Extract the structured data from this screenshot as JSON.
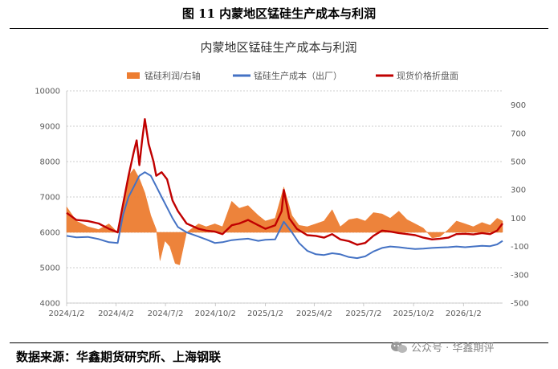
{
  "figure_title": "图 11  内蒙地区锰硅生产成本与利润",
  "source_text": "数据来源：华鑫期货研究所、上海钢联",
  "watermark_text": "公众号 · 华鑫期评",
  "colors": {
    "profit": "#ed7d31",
    "cost": "#4472c4",
    "price": "#c00000"
  },
  "chart_data": {
    "type": "line",
    "title": "内蒙地区锰硅生产成本与利润",
    "x_ticks": [
      "2024/1/2",
      "2024/4/2",
      "2024/7/2",
      "2024/10/2",
      "2025/1/2",
      "2025/4/2",
      "2025/7/2",
      "2025/10/2",
      "2026/1/2"
    ],
    "y_left": {
      "min": 4000,
      "max": 10000,
      "ticks": [
        4000,
        5000,
        6000,
        7000,
        8000,
        9000,
        10000
      ]
    },
    "y_right": {
      "min": -500,
      "max": 1000,
      "ticks": [
        -500,
        -300,
        -100,
        100,
        300,
        500,
        700,
        900
      ]
    },
    "legend_position": "top",
    "series": [
      {
        "name": "锰硅利润/右轴",
        "kind": "area",
        "axis": "right",
        "color": "#ed7d31",
        "points": [
          [
            "2024/1/2",
            180
          ],
          [
            "2024/1/20",
            80
          ],
          [
            "2024/2/10",
            40
          ],
          [
            "2024/3/1",
            20
          ],
          [
            "2024/3/20",
            60
          ],
          [
            "2024/4/5",
            0
          ],
          [
            "2024/4/15",
            200
          ],
          [
            "2024/4/25",
            400
          ],
          [
            "2024/5/5",
            450
          ],
          [
            "2024/5/15",
            380
          ],
          [
            "2024/5/25",
            280
          ],
          [
            "2024/6/5",
            120
          ],
          [
            "2024/6/15",
            20
          ],
          [
            "2024/6/22",
            -200
          ],
          [
            "2024/7/1",
            -60
          ],
          [
            "2024/7/10",
            -100
          ],
          [
            "2024/7/20",
            -220
          ],
          [
            "2024/7/28",
            -230
          ],
          [
            "2024/8/10",
            0
          ],
          [
            "2024/9/1",
            60
          ],
          [
            "2024/9/15",
            40
          ],
          [
            "2024/10/1",
            60
          ],
          [
            "2024/10/15",
            40
          ],
          [
            "2024/11/1",
            220
          ],
          [
            "2024/11/15",
            170
          ],
          [
            "2024/12/1",
            190
          ],
          [
            "2024/12/20",
            120
          ],
          [
            "2025/1/2",
            80
          ],
          [
            "2025/1/20",
            100
          ],
          [
            "2025/2/5",
            320
          ],
          [
            "2025/2/20",
            120
          ],
          [
            "2025/3/5",
            50
          ],
          [
            "2025/3/20",
            40
          ],
          [
            "2025/4/5",
            60
          ],
          [
            "2025/4/20",
            80
          ],
          [
            "2025/5/5",
            160
          ],
          [
            "2025/5/20",
            40
          ],
          [
            "2025/6/5",
            90
          ],
          [
            "2025/6/20",
            100
          ],
          [
            "2025/7/5",
            80
          ],
          [
            "2025/7/20",
            140
          ],
          [
            "2025/8/5",
            130
          ],
          [
            "2025/8/20",
            100
          ],
          [
            "2025/9/5",
            150
          ],
          [
            "2025/9/20",
            90
          ],
          [
            "2025/10/5",
            60
          ],
          [
            "2025/10/20",
            30
          ],
          [
            "2025/11/5",
            -40
          ],
          [
            "2025/11/20",
            -30
          ],
          [
            "2025/12/5",
            20
          ],
          [
            "2025/12/20",
            80
          ],
          [
            "2026/1/5",
            60
          ],
          [
            "2026/1/20",
            40
          ],
          [
            "2026/2/5",
            70
          ],
          [
            "2026/2/20",
            50
          ],
          [
            "2026/3/5",
            100
          ],
          [
            "2026/3/15",
            80
          ]
        ]
      },
      {
        "name": "锰硅生产成本（出厂）",
        "kind": "line",
        "axis": "left",
        "color": "#4472c4",
        "points": [
          [
            "2024/1/2",
            5900
          ],
          [
            "2024/1/20",
            5860
          ],
          [
            "2024/2/10",
            5870
          ],
          [
            "2024/3/1",
            5810
          ],
          [
            "2024/3/20",
            5720
          ],
          [
            "2024/4/5",
            5700
          ],
          [
            "2024/4/15",
            6500
          ],
          [
            "2024/4/25",
            7000
          ],
          [
            "2024/5/5",
            7300
          ],
          [
            "2024/5/15",
            7600
          ],
          [
            "2024/5/25",
            7700
          ],
          [
            "2024/6/5",
            7600
          ],
          [
            "2024/6/15",
            7300
          ],
          [
            "2024/6/25",
            7000
          ],
          [
            "2024/7/5",
            6700
          ],
          [
            "2024/7/15",
            6400
          ],
          [
            "2024/7/25",
            6150
          ],
          [
            "2024/8/10",
            6000
          ],
          [
            "2024/9/1",
            5880
          ],
          [
            "2024/9/15",
            5800
          ],
          [
            "2024/10/1",
            5700
          ],
          [
            "2024/10/15",
            5720
          ],
          [
            "2024/11/1",
            5780
          ],
          [
            "2024/11/15",
            5800
          ],
          [
            "2024/12/1",
            5820
          ],
          [
            "2024/12/20",
            5760
          ],
          [
            "2025/1/2",
            5790
          ],
          [
            "2025/1/20",
            5800
          ],
          [
            "2025/2/5",
            6300
          ],
          [
            "2025/2/20",
            6000
          ],
          [
            "2025/3/5",
            5700
          ],
          [
            "2025/3/20",
            5480
          ],
          [
            "2025/4/5",
            5380
          ],
          [
            "2025/4/20",
            5360
          ],
          [
            "2025/5/5",
            5410
          ],
          [
            "2025/5/20",
            5380
          ],
          [
            "2025/6/5",
            5300
          ],
          [
            "2025/6/20",
            5270
          ],
          [
            "2025/7/5",
            5320
          ],
          [
            "2025/7/20",
            5460
          ],
          [
            "2025/8/5",
            5560
          ],
          [
            "2025/8/20",
            5600
          ],
          [
            "2025/9/5",
            5580
          ],
          [
            "2025/9/20",
            5550
          ],
          [
            "2025/10/5",
            5530
          ],
          [
            "2025/10/20",
            5540
          ],
          [
            "2025/11/5",
            5560
          ],
          [
            "2025/11/20",
            5570
          ],
          [
            "2025/12/5",
            5580
          ],
          [
            "2025/12/20",
            5600
          ],
          [
            "2026/1/5",
            5580
          ],
          [
            "2026/1/20",
            5600
          ],
          [
            "2026/2/5",
            5620
          ],
          [
            "2026/2/20",
            5610
          ],
          [
            "2026/3/5",
            5660
          ],
          [
            "2026/3/15",
            5760
          ]
        ]
      },
      {
        "name": "现货价格折盘面",
        "kind": "line",
        "axis": "left",
        "color": "#c00000",
        "points": [
          [
            "2024/1/2",
            6550
          ],
          [
            "2024/1/20",
            6350
          ],
          [
            "2024/2/10",
            6320
          ],
          [
            "2024/3/1",
            6250
          ],
          [
            "2024/3/20",
            6100
          ],
          [
            "2024/4/5",
            6000
          ],
          [
            "2024/4/15",
            6800
          ],
          [
            "2024/4/25",
            7600
          ],
          [
            "2024/5/5",
            8300
          ],
          [
            "2024/5/10",
            8600
          ],
          [
            "2024/5/15",
            7900
          ],
          [
            "2024/5/20",
            8600
          ],
          [
            "2024/5/25",
            9200
          ],
          [
            "2024/6/1",
            8500
          ],
          [
            "2024/6/10",
            8000
          ],
          [
            "2024/6/15",
            7600
          ],
          [
            "2024/6/25",
            7700
          ],
          [
            "2024/7/5",
            7500
          ],
          [
            "2024/7/15",
            6900
          ],
          [
            "2024/7/25",
            6600
          ],
          [
            "2024/8/10",
            6250
          ],
          [
            "2024/9/1",
            6100
          ],
          [
            "2024/9/15",
            6050
          ],
          [
            "2024/10/1",
            6020
          ],
          [
            "2024/10/15",
            5950
          ],
          [
            "2024/11/1",
            6200
          ],
          [
            "2024/11/15",
            6250
          ],
          [
            "2024/12/1",
            6350
          ],
          [
            "2024/12/20",
            6200
          ],
          [
            "2025/1/2",
            6100
          ],
          [
            "2025/1/20",
            6200
          ],
          [
            "2025/2/1",
            6600
          ],
          [
            "2025/2/5",
            7200
          ],
          [
            "2025/2/15",
            6400
          ],
          [
            "2025/3/1",
            6100
          ],
          [
            "2025/3/20",
            5920
          ],
          [
            "2025/4/5",
            5900
          ],
          [
            "2025/4/20",
            5850
          ],
          [
            "2025/5/5",
            5950
          ],
          [
            "2025/5/20",
            5800
          ],
          [
            "2025/6/5",
            5750
          ],
          [
            "2025/6/20",
            5650
          ],
          [
            "2025/7/5",
            5700
          ],
          [
            "2025/7/20",
            5900
          ],
          [
            "2025/8/5",
            6050
          ],
          [
            "2025/8/20",
            6020
          ],
          [
            "2025/9/5",
            5980
          ],
          [
            "2025/9/20",
            5950
          ],
          [
            "2025/10/5",
            5920
          ],
          [
            "2025/10/20",
            5850
          ],
          [
            "2025/11/5",
            5800
          ],
          [
            "2025/11/20",
            5820
          ],
          [
            "2025/12/5",
            5850
          ],
          [
            "2025/12/20",
            5950
          ],
          [
            "2026/1/5",
            5960
          ],
          [
            "2026/1/20",
            5940
          ],
          [
            "2026/2/5",
            5980
          ],
          [
            "2026/2/20",
            5950
          ],
          [
            "2026/3/5",
            6050
          ],
          [
            "2026/3/15",
            6250
          ]
        ]
      }
    ]
  }
}
